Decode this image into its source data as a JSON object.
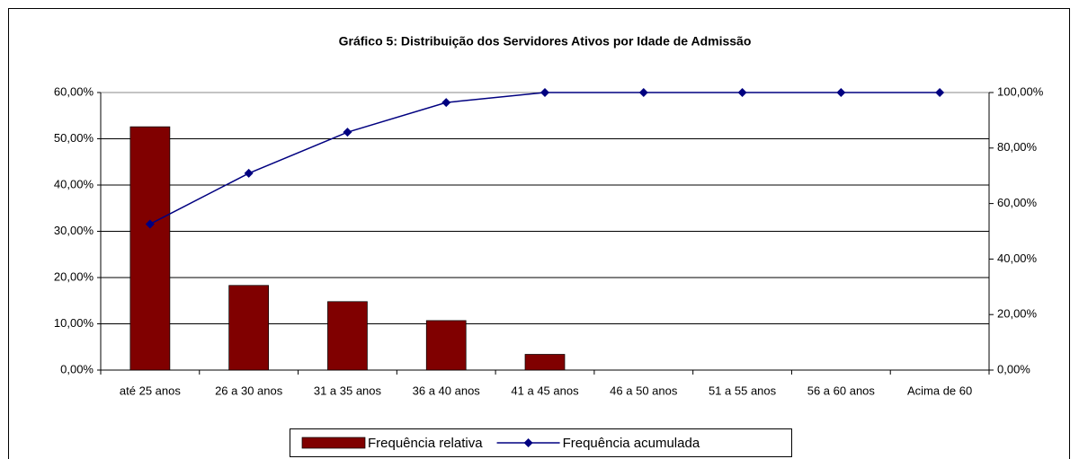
{
  "chart_data": {
    "type": "bar_line",
    "title": "Gráfico 5: Distribuição dos Servidores Ativos por Idade de Admissão",
    "categories": [
      "até 25 anos",
      "26 a 30 anos",
      "31 a 35 anos",
      "36 a 40 anos",
      "41 a 45 anos",
      "46 a 50 anos",
      "51 a 55 anos",
      "56 a 60 anos",
      "Acima de 60"
    ],
    "series": [
      {
        "name": "Frequência relativa",
        "type": "bar",
        "color": "#800000",
        "values": [
          52.6,
          18.3,
          14.8,
          10.7,
          3.4,
          0,
          0,
          0,
          0
        ]
      },
      {
        "name": "Frequência acumulada",
        "type": "line",
        "axis": "y2",
        "color": "#000080",
        "values": [
          52.6,
          70.9,
          85.7,
          96.4,
          100,
          100,
          100,
          100,
          100
        ]
      }
    ],
    "ylim": [
      0,
      60
    ],
    "yticks": [
      {
        "value": 0,
        "label": "0,00%"
      },
      {
        "value": 10,
        "label": "10,00%"
      },
      {
        "value": 20,
        "label": "20,00%"
      },
      {
        "value": 30,
        "label": "30,00%"
      },
      {
        "value": 40,
        "label": "40,00%"
      },
      {
        "value": 50,
        "label": "50,00%"
      },
      {
        "value": 60,
        "label": "60,00%"
      }
    ],
    "y2lim": [
      0,
      100
    ],
    "y2ticks": [
      {
        "value": 0,
        "label": "0,00%"
      },
      {
        "value": 20,
        "label": "20,00%"
      },
      {
        "value": 40,
        "label": "40,00%"
      },
      {
        "value": 60,
        "label": "60,00%"
      },
      {
        "value": 80,
        "label": "80,00%"
      },
      {
        "value": 100,
        "label": "100,00%"
      }
    ],
    "grid": true,
    "legend": "bottom"
  }
}
